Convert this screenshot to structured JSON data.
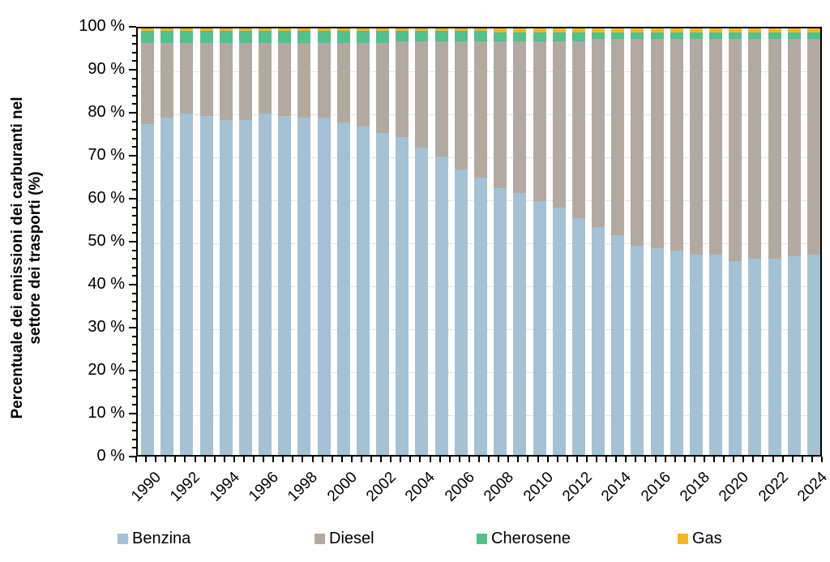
{
  "chart_data": {
    "type": "bar",
    "stacked": true,
    "stacked_to_100": true,
    "ylabel_line1": "Percentuale dei emissioni dei carburanti nel",
    "ylabel_line2": "settore dei trasporti (%)",
    "ylim": [
      0,
      100
    ],
    "y_major_step": 10,
    "y_minor_step": 2,
    "grid": "horizontal-dotted",
    "legend_position": "bottom",
    "y_tick_labels": [
      "0 %",
      "10 %",
      "20 %",
      "30 %",
      "40 %",
      "50 %",
      "60 %",
      "70 %",
      "80 %",
      "90 %",
      "100 %"
    ],
    "x_labeled_years": [
      "1990",
      "1992",
      "1994",
      "1996",
      "1998",
      "2000",
      "2002",
      "2004",
      "2006",
      "2008",
      "2010",
      "2012",
      "2014",
      "2016",
      "2018",
      "2020",
      "2022",
      "2024"
    ],
    "categories": [
      "1990",
      "1991",
      "1992",
      "1993",
      "1994",
      "1995",
      "1996",
      "1997",
      "1998",
      "1999",
      "2000",
      "2001",
      "2002",
      "2003",
      "2004",
      "2005",
      "2006",
      "2007",
      "2008",
      "2009",
      "2010",
      "2011",
      "2012",
      "2013",
      "2014",
      "2015",
      "2016",
      "2017",
      "2018",
      "2019",
      "2020",
      "2021",
      "2022",
      "2023",
      "2024"
    ],
    "series": [
      {
        "name": "Benzina",
        "color": "#a5c1d4",
        "values": [
          77.5,
          79,
          80,
          79.5,
          78.5,
          78.5,
          80,
          79.5,
          79,
          79,
          78,
          77,
          75.5,
          74.5,
          72,
          70,
          67,
          65,
          62.5,
          61.5,
          59.5,
          58,
          55.5,
          53.5,
          51.5,
          49,
          48.5,
          48,
          47,
          47,
          45.5,
          46,
          46,
          46.5,
          47
        ]
      },
      {
        "name": "Diesel",
        "color": "#b2aaa0",
        "values": [
          19,
          17.5,
          16.5,
          17,
          18,
          18,
          16.5,
          17,
          17.5,
          17.5,
          18.5,
          19.5,
          21,
          22.5,
          25,
          27,
          30,
          32,
          34.5,
          35.5,
          37.5,
          39,
          41.5,
          44,
          46,
          48.5,
          49,
          49.5,
          50.5,
          50.5,
          52,
          51.5,
          51.5,
          51,
          50.5
        ]
      },
      {
        "name": "Cherosene",
        "color": "#52c18c",
        "values": [
          3,
          3,
          3,
          3,
          3,
          3,
          3,
          3,
          3,
          3,
          3,
          3,
          3,
          2.5,
          2.5,
          2.5,
          2.5,
          2.5,
          2,
          2,
          2,
          2,
          2,
          1.5,
          1.5,
          1.5,
          1.5,
          1.5,
          1.5,
          1.5,
          1.5,
          1.5,
          1.5,
          1.5,
          1.5
        ]
      },
      {
        "name": "Gas",
        "color": "#f3b71f",
        "values": [
          0.5,
          0.5,
          0.5,
          0.5,
          0.5,
          0.5,
          0.5,
          0.5,
          0.5,
          0.5,
          0.5,
          0.5,
          0.5,
          0.5,
          0.5,
          0.5,
          0.5,
          0.5,
          1,
          1,
          1,
          1,
          1,
          1,
          1,
          1,
          1,
          1,
          1,
          1,
          1,
          1,
          1,
          1,
          1
        ]
      }
    ]
  }
}
